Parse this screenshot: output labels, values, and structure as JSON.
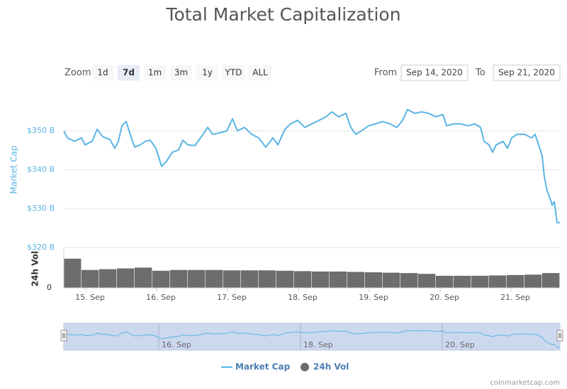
{
  "chart_data": {
    "type": "line",
    "title": "Total Market Capitalization",
    "range_selector": {
      "label": "Zoom",
      "buttons": [
        "1d",
        "7d",
        "1m",
        "3m",
        "1y",
        "YTD",
        "ALL"
      ],
      "selected": 1,
      "from_label": "From",
      "from": "Sep 14, 2020",
      "to_label": "To",
      "to": "Sep 21, 2020"
    },
    "ylabel": "Market Cap",
    "x": [
      0.69,
      0.74,
      0.84,
      0.94,
      0.99,
      1.09,
      1.16,
      1.24,
      1.34,
      1.41,
      1.46,
      1.51,
      1.57,
      1.62,
      1.69,
      1.77,
      1.84,
      1.91,
      1.99,
      2.07,
      2.14,
      2.22,
      2.31,
      2.37,
      2.44,
      2.54,
      2.62,
      2.72,
      2.79,
      2.89,
      2.99,
      3.07,
      3.14,
      3.24,
      3.34,
      3.44,
      3.54,
      3.64,
      3.71,
      3.81,
      3.89,
      3.99,
      4.09,
      4.19,
      4.29,
      4.39,
      4.47,
      4.57,
      4.67,
      4.74,
      4.81,
      4.89,
      4.99,
      5.09,
      5.19,
      5.29,
      5.39,
      5.47,
      5.54,
      5.64,
      5.74,
      5.84,
      5.94,
      6.04,
      6.09,
      6.19,
      6.29,
      6.39,
      6.49,
      6.57,
      6.62,
      6.69,
      6.74,
      6.79,
      6.89,
      6.95,
      7.01,
      7.09,
      7.19,
      7.29,
      7.34,
      7.39,
      7.44,
      7.47,
      7.51,
      7.55,
      7.58,
      7.61,
      7.65,
      7.69
    ],
    "series": [
      {
        "name": "Market Cap",
        "color": "#5bb4e5",
        "values": [
          350.0,
          348.2,
          347.3,
          348.2,
          346.4,
          347.3,
          350.4,
          348.5,
          347.8,
          345.5,
          347.3,
          351.3,
          352.4,
          349.5,
          345.8,
          346.4,
          347.3,
          347.6,
          345.5,
          340.9,
          342.2,
          344.5,
          345.1,
          347.6,
          346.4,
          346.2,
          348.2,
          350.9,
          349.1,
          349.5,
          350.0,
          353.1,
          350.0,
          350.9,
          349.1,
          348.2,
          345.8,
          348.2,
          346.4,
          350.4,
          351.8,
          352.7,
          350.9,
          351.8,
          352.7,
          353.6,
          354.9,
          353.6,
          354.5,
          350.9,
          349.1,
          350.0,
          351.3,
          351.8,
          352.4,
          351.8,
          350.9,
          352.7,
          355.5,
          354.5,
          354.9,
          354.5,
          353.6,
          354.2,
          351.3,
          351.8,
          351.8,
          351.3,
          351.8,
          350.9,
          347.3,
          346.4,
          344.5,
          346.4,
          347.3,
          345.5,
          348.2,
          349.1,
          349.1,
          348.2,
          349.1,
          346.4,
          343.6,
          338.2,
          334.5,
          332.7,
          330.9,
          331.8,
          326.4,
          326.4
        ]
      }
    ],
    "xlim": [
      0.69,
      7.69
    ],
    "xticks": [
      {
        "value": 1,
        "label": "15. Sep"
      },
      {
        "value": 2,
        "label": "16. Sep"
      },
      {
        "value": 3,
        "label": "17. Sep"
      },
      {
        "value": 4,
        "label": "18. Sep"
      },
      {
        "value": 5,
        "label": "19. Sep"
      },
      {
        "value": 6,
        "label": "20. Sep"
      },
      {
        "value": 7,
        "label": "21. Sep"
      }
    ],
    "ylim": [
      320,
      360
    ],
    "yticks": [
      {
        "value": 320,
        "label": "$320 B"
      },
      {
        "value": 330,
        "label": "$330 B"
      },
      {
        "value": 340,
        "label": "$340 B"
      },
      {
        "value": 350,
        "label": "$350 B"
      }
    ],
    "grid": true,
    "volume": {
      "type": "bar",
      "name": "24h Vol",
      "ylabel": "24h Vol",
      "color": "#6d6d6d",
      "x": [
        0.69,
        0.94,
        1.19,
        1.44,
        1.69,
        1.94,
        2.19,
        2.44,
        2.69,
        2.94,
        3.19,
        3.44,
        3.69,
        3.94,
        4.19,
        4.44,
        4.69,
        4.94,
        5.19,
        5.44,
        5.69,
        5.94,
        6.19,
        6.44,
        6.69,
        6.94,
        7.19,
        7.44
      ],
      "bar_width": 0.25,
      "values": [
        75,
        46,
        48,
        50,
        52,
        44,
        46,
        46,
        46,
        45,
        45,
        45,
        44,
        43,
        42,
        42,
        41,
        40,
        39,
        38,
        36,
        31,
        31,
        31,
        32,
        33,
        34,
        38
      ],
      "ylim": [
        0,
        100
      ],
      "yticks": [
        0
      ]
    },
    "navigator": {
      "xticks": [
        {
          "value": 2,
          "label": "16. Sep"
        },
        {
          "value": 4,
          "label": "18. Sep"
        },
        {
          "value": 6,
          "label": "20. Sep"
        }
      ]
    },
    "credit": "coinmarketcap.com"
  }
}
